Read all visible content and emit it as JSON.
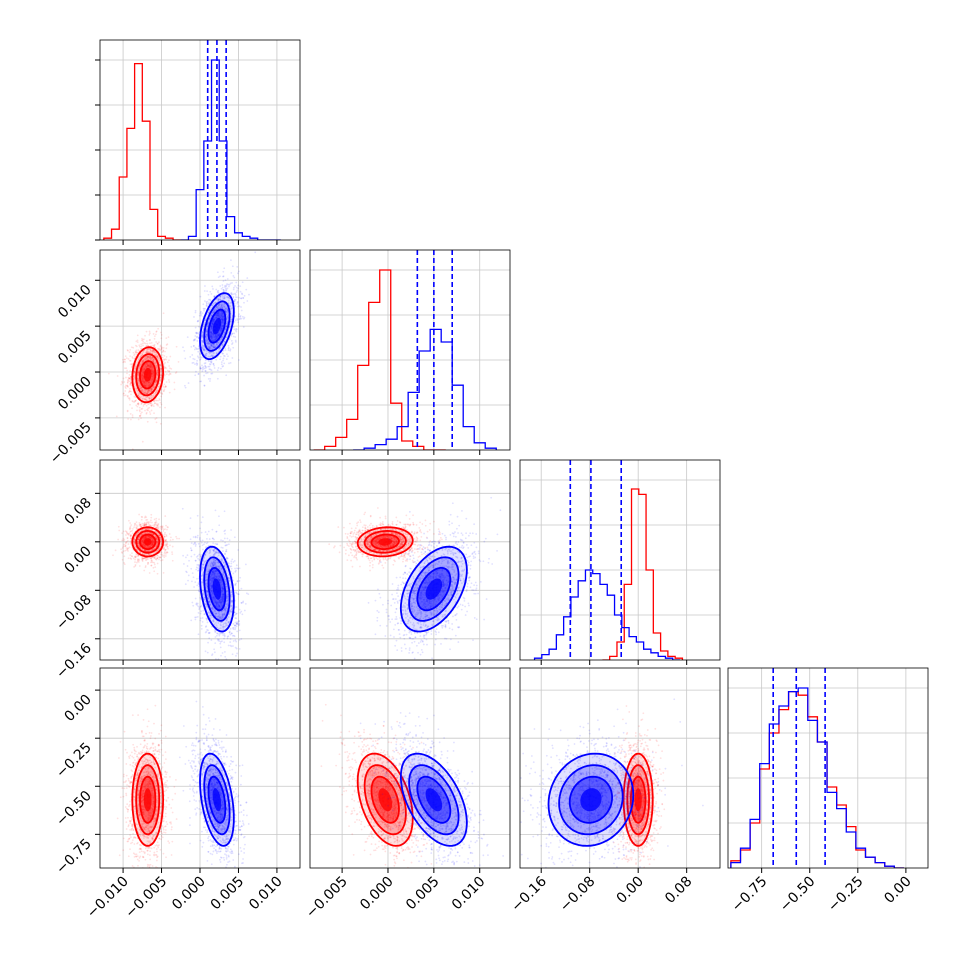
{
  "colors": {
    "series_a": "#ff0000",
    "series_b": "#0000ff",
    "grid": "#c8c8c8",
    "frame": "#000000"
  },
  "chart_data": {
    "type": "corner",
    "parameters": [
      {
        "range": [
          -0.013,
          0.013
        ],
        "ticks": [
          -0.01,
          -0.005,
          0.0,
          0.005,
          0.01
        ],
        "tick_labels": [
          "−0.010",
          "−0.005",
          "0.000",
          "0.005",
          "0.010"
        ]
      },
      {
        "range": [
          -0.0085,
          0.0133
        ],
        "ticks": [
          -0.005,
          0.0,
          0.005,
          0.01
        ],
        "tick_labels": [
          "−0.005",
          "0.000",
          "0.005",
          "0.010"
        ]
      },
      {
        "range": [
          -0.195,
          0.135
        ],
        "ticks": [
          -0.16,
          -0.08,
          0.0,
          0.08
        ],
        "tick_labels": [
          "−0.16",
          "−0.08",
          "0.00",
          "0.08"
        ]
      },
      {
        "range": [
          -0.925,
          0.115
        ],
        "ticks": [
          -0.75,
          -0.5,
          -0.25,
          0.0
        ],
        "tick_labels": [
          "−0.75",
          "−0.50",
          "−0.25",
          "0.00"
        ]
      }
    ],
    "series": [
      {
        "color": "#ff0000",
        "mean": [
          -0.0068,
          -0.0003,
          0.0,
          -0.57
        ],
        "sd": [
          0.001,
          0.0015,
          0.012,
          0.12
        ],
        "corr": {
          "0-1": 0.1,
          "0-2": 0.0,
          "0-3": 0.0,
          "1-2": 0.1,
          "1-3": -0.4,
          "2-3": 0.0
        },
        "hist": [
          {
            "x": [
              -0.012,
              -0.011,
              -0.01,
              -0.009,
              -0.008,
              -0.007,
              -0.006,
              -0.005,
              -0.004,
              -0.003
            ],
            "values": [
              0.01,
              0.06,
              0.35,
              0.62,
              0.98,
              0.66,
              0.17,
              0.02,
              0.01,
              0.0
            ]
          },
          {
            "x": [
              -0.0075,
              -0.0063,
              -0.0051,
              -0.0039,
              -0.0027,
              -0.0015,
              -0.0003,
              0.0009,
              0.0021,
              0.0033,
              0.0045,
              0.0057
            ],
            "values": [
              0.0,
              0.02,
              0.07,
              0.17,
              0.47,
              0.82,
              1.0,
              0.26,
              0.05,
              0.02,
              0.0,
              0.0
            ]
          },
          {
            "x": [
              -0.053,
              -0.041,
              -0.029,
              -0.017,
              -0.005,
              0.007,
              0.019,
              0.031,
              0.043,
              0.055,
              0.067
            ],
            "values": [
              0.0,
              0.02,
              0.1,
              0.42,
              0.95,
              0.92,
              0.5,
              0.15,
              0.05,
              0.02,
              0.01
            ]
          },
          {
            "x": [
              -0.885,
              -0.835,
              -0.785,
              -0.735,
              -0.685,
              -0.635,
              -0.585,
              -0.535,
              -0.485,
              -0.435,
              -0.385,
              -0.335,
              -0.285,
              -0.235,
              -0.185,
              -0.135,
              -0.085,
              -0.035
            ],
            "values": [
              0.04,
              0.1,
              0.25,
              0.55,
              0.75,
              0.88,
              0.98,
              0.96,
              0.84,
              0.7,
              0.45,
              0.35,
              0.23,
              0.1,
              0.06,
              0.03,
              0.01,
              0.0
            ]
          }
        ],
        "quantiles": []
      },
      {
        "color": "#0000ff",
        "mean": [
          0.0022,
          0.005,
          -0.078,
          -0.57
        ],
        "sd": [
          0.0011,
          0.0018,
          0.035,
          0.12
        ],
        "corr": {
          "0-1": 0.45,
          "0-2": -0.3,
          "0-3": -0.4,
          "1-2": 0.45,
          "1-3": -0.5,
          "2-3": 0.1
        },
        "hist": [
          {
            "x": [
              -0.002,
              -0.001,
              0.0,
              0.001,
              0.002,
              0.003,
              0.004,
              0.005,
              0.006,
              0.007,
              0.008,
              0.009,
              0.01
            ],
            "values": [
              0.0,
              0.02,
              0.28,
              0.55,
              1.0,
              0.55,
              0.13,
              0.04,
              0.02,
              0.01,
              0.0,
              0.0,
              0.0
            ]
          },
          {
            "x": [
              -0.0032,
              -0.002,
              -0.0008,
              0.0004,
              0.0016,
              0.0028,
              0.004,
              0.0052,
              0.0064,
              0.0076,
              0.0088,
              0.01,
              0.0112
            ],
            "values": [
              0.0,
              0.01,
              0.03,
              0.06,
              0.13,
              0.32,
              0.55,
              0.67,
              0.6,
              0.36,
              0.13,
              0.04,
              0.01
            ]
          },
          {
            "x": [
              -0.165,
              -0.153,
              -0.141,
              -0.129,
              -0.117,
              -0.105,
              -0.093,
              -0.081,
              -0.069,
              -0.057,
              -0.045,
              -0.033,
              -0.021,
              -0.009,
              0.003,
              0.015,
              0.027,
              0.039,
              0.051,
              0.063
            ],
            "values": [
              0.01,
              0.03,
              0.06,
              0.14,
              0.24,
              0.35,
              0.44,
              0.5,
              0.48,
              0.42,
              0.36,
              0.25,
              0.18,
              0.13,
              0.1,
              0.06,
              0.04,
              0.02,
              0.01,
              0.0
            ]
          },
          {
            "x": [
              -0.885,
              -0.835,
              -0.785,
              -0.735,
              -0.685,
              -0.635,
              -0.585,
              -0.535,
              -0.485,
              -0.435,
              -0.385,
              -0.335,
              -0.285,
              -0.235,
              -0.185,
              -0.135,
              -0.085,
              -0.035
            ],
            "values": [
              0.03,
              0.11,
              0.27,
              0.58,
              0.8,
              0.9,
              0.98,
              1.0,
              0.82,
              0.7,
              0.42,
              0.33,
              0.2,
              0.11,
              0.06,
              0.03,
              0.01,
              0.0
            ]
          }
        ],
        "quantiles": [
          [
            0.001,
            0.0022,
            0.0034
          ],
          [
            0.0032,
            0.005,
            0.007
          ],
          [
            -0.112,
            -0.078,
            -0.028
          ],
          [
            -0.69,
            -0.57,
            -0.42
          ]
        ]
      }
    ],
    "grid": true,
    "legend": "none"
  }
}
